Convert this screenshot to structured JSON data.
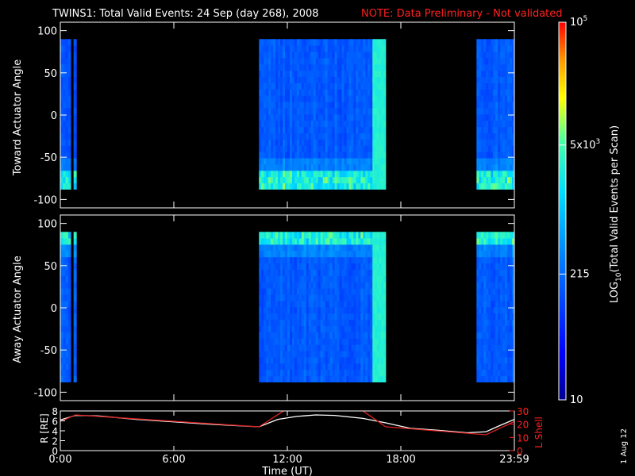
{
  "header": {
    "title": "TWINS1: Total Valid Events: 24 Sep (day 268), 2008",
    "note": "NOTE: Data Preliminary - Not validated"
  },
  "side_date": "1 Aug 12",
  "colors": {
    "background": "#000000",
    "axes": "#ffffff",
    "note": "#ff2020",
    "r_line": "#ffffff",
    "lshell_line": "#e02020"
  },
  "chart_data": [
    {
      "type": "heatmap",
      "panel": "top",
      "ylabel": "Toward Actuator Angle",
      "xlim": [
        0,
        24
      ],
      "ylim": [
        -110,
        110
      ],
      "yticks": [
        100,
        50,
        0,
        -50,
        -100
      ],
      "yticklabels": [
        "100",
        "50",
        "0",
        "-50",
        "-100"
      ],
      "data_y_range": [
        -88,
        90
      ],
      "data_blocks_hours": [
        [
          0.0,
          0.55
        ],
        [
          0.7,
          0.85
        ],
        [
          10.5,
          16.5
        ],
        [
          16.5,
          17.2
        ],
        [
          22.0,
          24.0
        ]
      ],
      "dominant_log_counts": 2.3,
      "bright_edge": "bottom (-90 to -70)"
    },
    {
      "type": "heatmap",
      "panel": "bottom",
      "ylabel": "Away Actuator Angle",
      "xlim": [
        0,
        24
      ],
      "ylim": [
        -110,
        110
      ],
      "yticks": [
        100,
        50,
        0,
        -50,
        -100
      ],
      "yticklabels": [
        "100",
        "50",
        "0",
        "-50",
        "-100"
      ],
      "data_y_range": [
        -88,
        90
      ],
      "data_blocks_hours": [
        [
          0.0,
          0.55
        ],
        [
          0.7,
          0.85
        ],
        [
          10.5,
          16.5
        ],
        [
          16.5,
          17.2
        ],
        [
          22.0,
          24.0
        ]
      ],
      "dominant_log_counts": 2.3,
      "bright_edge": "top (70 to 90)"
    },
    {
      "type": "line",
      "panel": "orbit",
      "ylabel_left": "R [RE]",
      "ylabel_right": "L Shell",
      "xlabel": "Time (UT)",
      "xlim": [
        0,
        24
      ],
      "xticks": [
        0,
        6,
        12,
        18,
        24
      ],
      "xticklabels": [
        "0:00",
        "6:00",
        "12:00",
        "18:00",
        "23:59"
      ],
      "ylim_left": [
        0,
        8
      ],
      "yticks_left": [
        0,
        2,
        4,
        6,
        8
      ],
      "yticklabels_left": [
        "0",
        "2",
        "4",
        "6",
        "8"
      ],
      "ylim_right": [
        0,
        30
      ],
      "yticks_right": [
        0,
        10,
        20,
        30
      ],
      "yticklabels_right": [
        "0",
        "10",
        "20",
        "30"
      ],
      "series": [
        {
          "axis": "left",
          "x": [
            0,
            0.8,
            2,
            4,
            6,
            8,
            10.5,
            11.5,
            12.5,
            13.5,
            14.5,
            16,
            17.2,
            18.5,
            20,
            21.5,
            22.5,
            23.2,
            24
          ],
          "y": [
            6.2,
            7.1,
            7.0,
            6.3,
            5.8,
            5.3,
            4.8,
            6.3,
            6.9,
            7.2,
            7.1,
            6.5,
            5.6,
            4.5,
            4.1,
            3.6,
            3.8,
            5.0,
            6.3
          ]
        },
        {
          "axis": "right",
          "x": [
            0,
            0.8,
            10.5,
            11.8,
            12.0,
            15.8,
            16.0,
            17.2,
            22.5,
            24
          ],
          "y": [
            22,
            27,
            18,
            30,
            34,
            34,
            30,
            18,
            12,
            22
          ]
        }
      ]
    }
  ],
  "colorbar": {
    "label": "LOG10(Total Valid Events per Scan)",
    "label_pre": "LOG",
    "label_sub": "10",
    "label_post": "(Total Valid Events per Scan)",
    "range_log": [
      1,
      5
    ],
    "ticks": [
      {
        "log": 5,
        "base": "10",
        "exp": "5"
      },
      {
        "log": 3.699,
        "base": "5x10",
        "exp": "3"
      },
      {
        "log": 2.332,
        "base": "215",
        "exp": ""
      },
      {
        "log": 1,
        "base": "10",
        "exp": ""
      }
    ]
  }
}
